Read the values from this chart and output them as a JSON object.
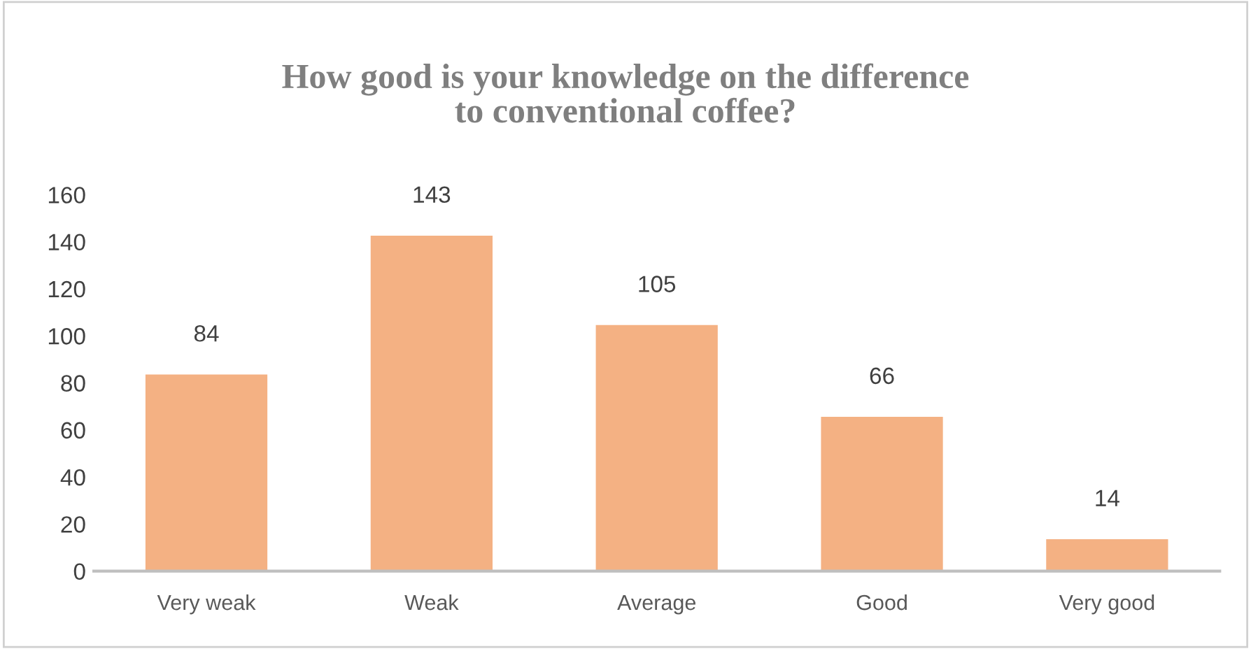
{
  "chart_data": {
    "type": "bar",
    "title": "How good is your knowledge on the difference\nto conventional coffee?",
    "categories": [
      "Very weak",
      "Weak",
      "Average",
      "Good",
      "Very good"
    ],
    "values": [
      84,
      143,
      105,
      66,
      14
    ],
    "color": "#f4b183",
    "ylim": [
      0,
      160
    ],
    "yticks": [
      0,
      20,
      40,
      60,
      80,
      100,
      120,
      140,
      160
    ],
    "grid": false,
    "data_labels": true
  }
}
